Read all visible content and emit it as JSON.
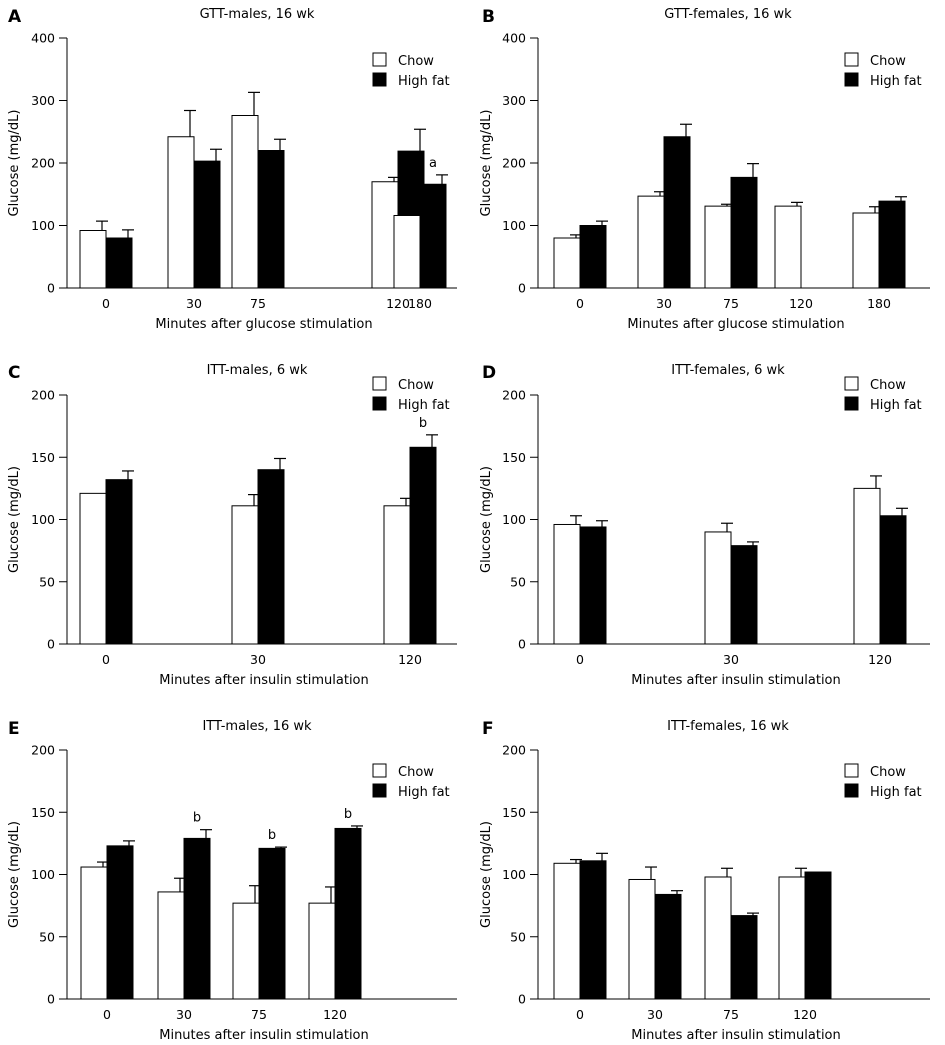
{
  "legend_colors": {
    "Chow": "#ffffff",
    "High fat": "#000000"
  },
  "chart_data": [
    {
      "type": "bar",
      "panel": "A",
      "title": "GTT-males, 16 wk",
      "xlabel": "Minutes after glucose stimulation",
      "ylabel": "Glucose (mg/dL)",
      "ylim": [
        0,
        400
      ],
      "yticks": [
        0,
        100,
        200,
        300,
        400
      ],
      "categories": [
        "0",
        "30",
        "75",
        "120",
        "180"
      ],
      "legend": [
        "Chow",
        "High fat"
      ],
      "legend_position": "top-right",
      "series": [
        {
          "name": "Chow",
          "values": [
            92,
            242,
            276,
            170,
            116
          ],
          "errors": [
            15,
            42,
            37,
            7,
            3
          ]
        },
        {
          "name": "High fat",
          "values": [
            80,
            203,
            220,
            219,
            166
          ],
          "errors": [
            13,
            19,
            18,
            35,
            15
          ]
        }
      ],
      "annotations": [
        {
          "category": "180",
          "series": "High fat",
          "text": "a"
        }
      ]
    },
    {
      "type": "bar",
      "panel": "B",
      "title": "GTT-females, 16 wk",
      "xlabel": "Minutes after glucose stimulation",
      "ylabel": "Glucose (mg/dL)",
      "ylim": [
        0,
        400
      ],
      "yticks": [
        0,
        100,
        200,
        300,
        400
      ],
      "categories": [
        "0",
        "30",
        "75",
        "120",
        "180"
      ],
      "legend": [
        "Chow",
        "High fat"
      ],
      "legend_position": "top-right",
      "series": [
        {
          "name": "Chow",
          "values": [
            80,
            147,
            131,
            131,
            120
          ],
          "errors": [
            5,
            7,
            3,
            6,
            10
          ]
        },
        {
          "name": "High fat",
          "values": [
            100,
            242,
            177,
            0,
            139
          ],
          "errors": [
            7,
            20,
            22,
            0,
            7
          ]
        }
      ],
      "annotations": []
    },
    {
      "type": "bar",
      "panel": "C",
      "title": "ITT-males, 6 wk",
      "xlabel": "Minutes after insulin stimulation",
      "ylabel": "Glucose (mg/dL)",
      "ylim": [
        0,
        200
      ],
      "yticks": [
        0,
        50,
        100,
        150,
        200
      ],
      "categories": [
        "0",
        "30",
        "120"
      ],
      "legend": [
        "Chow",
        "High fat"
      ],
      "legend_position": "top-right",
      "series": [
        {
          "name": "Chow",
          "values": [
            121,
            111,
            111
          ],
          "errors": [
            0,
            9,
            6
          ]
        },
        {
          "name": "High fat",
          "values": [
            132,
            140,
            158
          ],
          "errors": [
            7,
            9,
            10
          ]
        }
      ],
      "annotations": [
        {
          "category": "120",
          "series": "High fat",
          "text": "b"
        }
      ]
    },
    {
      "type": "bar",
      "panel": "D",
      "title": "ITT-females, 6 wk",
      "xlabel": "Minutes after insulin stimulation",
      "ylabel": "Glucose (mg/dL)",
      "ylim": [
        0,
        200
      ],
      "yticks": [
        0,
        50,
        100,
        150,
        200
      ],
      "categories": [
        "0",
        "30",
        "120"
      ],
      "legend": [
        "Chow",
        "High fat"
      ],
      "legend_position": "top-right",
      "series": [
        {
          "name": "Chow",
          "values": [
            96,
            90,
            125
          ],
          "errors": [
            7,
            7,
            10
          ]
        },
        {
          "name": "High fat",
          "values": [
            94,
            79,
            103
          ],
          "errors": [
            5,
            3,
            6
          ]
        }
      ],
      "annotations": []
    },
    {
      "type": "bar",
      "panel": "E",
      "title": "ITT-males, 16 wk",
      "xlabel": "Minutes after insulin stimulation",
      "ylabel": "Glucose (mg/dL)",
      "ylim": [
        0,
        200
      ],
      "yticks": [
        0,
        50,
        100,
        150,
        200
      ],
      "categories": [
        "0",
        "30",
        "75",
        "120"
      ],
      "legend": [
        "Chow",
        "High fat"
      ],
      "legend_position": "top-right",
      "series": [
        {
          "name": "Chow",
          "values": [
            106,
            86,
            77,
            77
          ],
          "errors": [
            4,
            11,
            14,
            13
          ]
        },
        {
          "name": "High fat",
          "values": [
            123,
            129,
            121,
            137
          ],
          "errors": [
            4,
            7,
            1,
            2
          ]
        }
      ],
      "annotations": [
        {
          "category": "30",
          "series": "High fat",
          "text": "b"
        },
        {
          "category": "75",
          "series": "High fat",
          "text": "b"
        },
        {
          "category": "120",
          "series": "High fat",
          "text": "b"
        }
      ]
    },
    {
      "type": "bar",
      "panel": "F",
      "title": "ITT-females, 16 wk",
      "xlabel": "Minutes after insulin stimulation",
      "ylabel": "Glucose (mg/dL)",
      "ylim": [
        0,
        200
      ],
      "yticks": [
        0,
        50,
        100,
        150,
        200
      ],
      "categories": [
        "0",
        "30",
        "75",
        "120"
      ],
      "legend": [
        "Chow",
        "High fat"
      ],
      "legend_position": "top-right",
      "series": [
        {
          "name": "Chow",
          "values": [
            109,
            96,
            98,
            98
          ],
          "errors": [
            3,
            10,
            7,
            7
          ]
        },
        {
          "name": "High fat",
          "values": [
            111,
            84,
            67,
            102
          ],
          "errors": [
            6,
            3,
            2,
            0
          ]
        }
      ],
      "annotations": []
    }
  ]
}
